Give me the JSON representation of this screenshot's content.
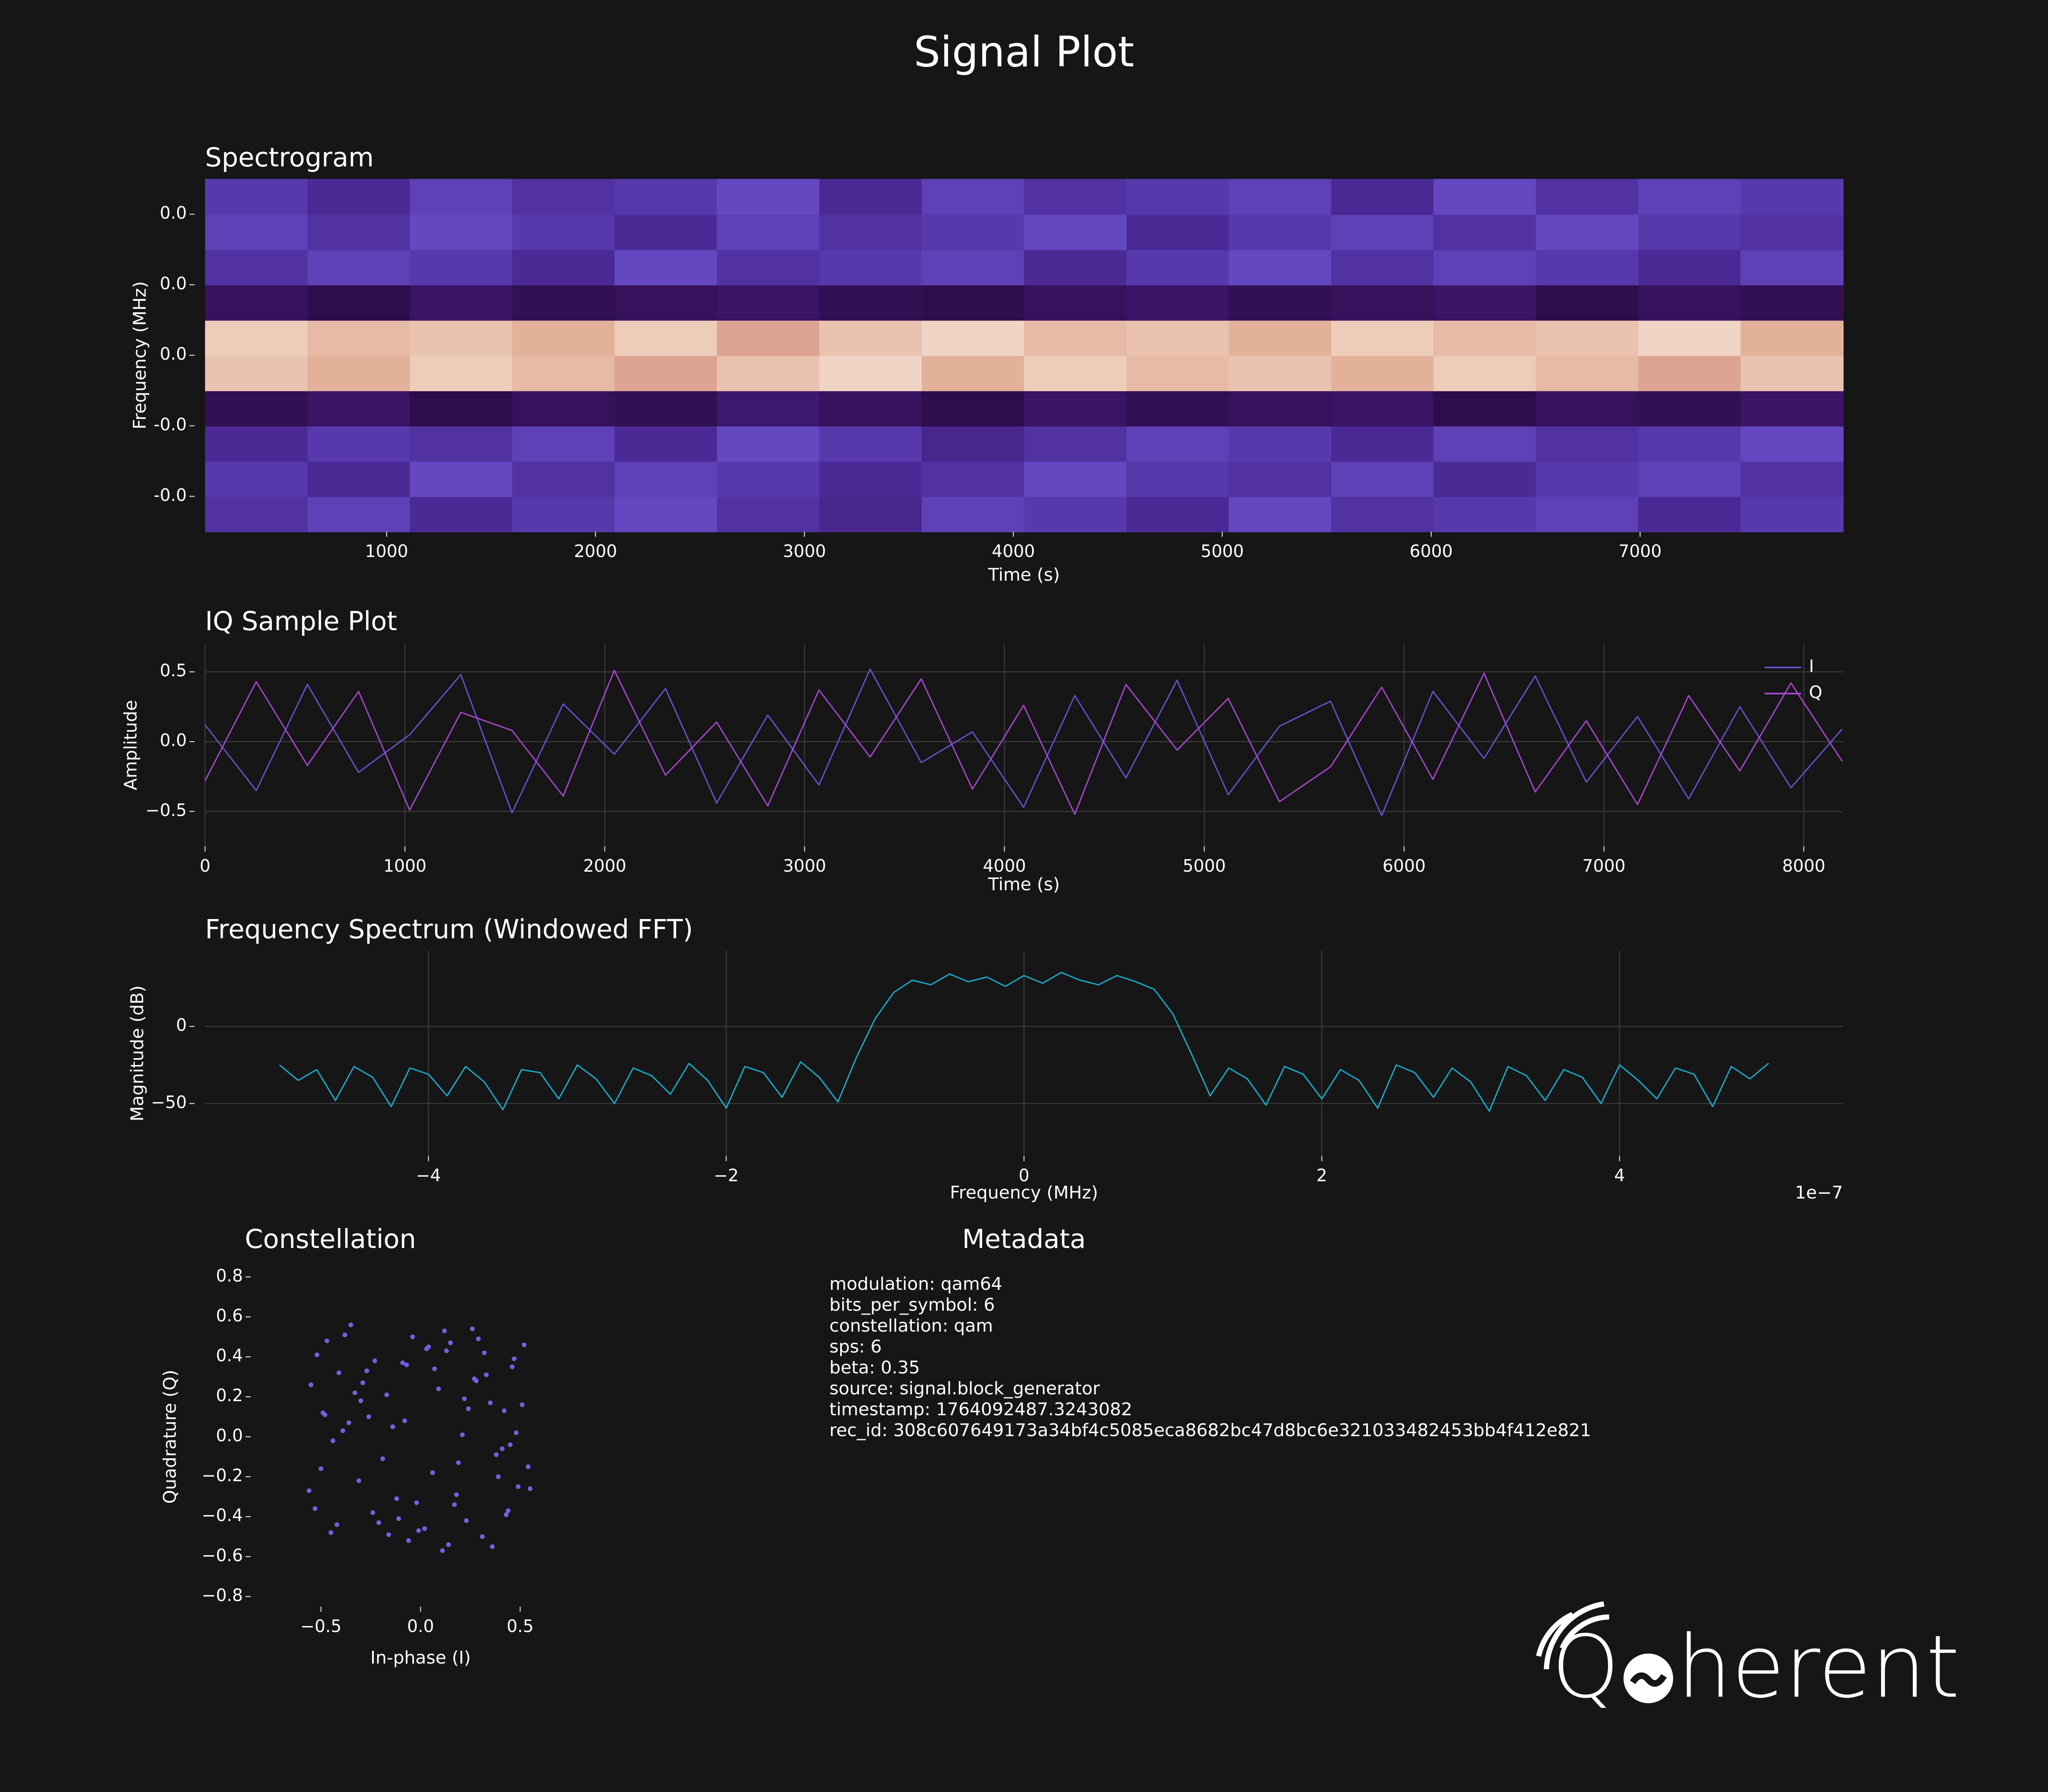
{
  "title": "Signal Plot",
  "chart_data": [
    {
      "type": "heatmap",
      "title": "Spectrogram",
      "xlabel": "Time (s)",
      "ylabel": "Frequency (MHz)",
      "xlim": [
        131,
        7971
      ],
      "ylim": [
        -0.05,
        0.05
      ],
      "xticks": [
        1000,
        2000,
        3000,
        4000,
        5000,
        6000,
        7000
      ],
      "yticks": [
        {
          "value": 0.04,
          "label": "0.0"
        },
        {
          "value": 0.02,
          "label": "0.0"
        },
        {
          "value": 0,
          "label": "0.0"
        },
        {
          "value": -0.02,
          "label": "-0.0"
        },
        {
          "value": -0.04,
          "label": "-0.0"
        }
      ],
      "grid": false,
      "xbins": [
        131,
        621,
        1111,
        1601,
        2091,
        2581,
        3071,
        3561,
        4051,
        4541,
        5031,
        5521,
        6011,
        6501,
        6991,
        7481,
        7971
      ],
      "ybins": [
        -0.05,
        -0.04,
        -0.03,
        -0.02,
        -0.01,
        0,
        0.01,
        0.02,
        0.03,
        0.04,
        0.05
      ],
      "colorscale": [
        [
          -55,
          "#25093a"
        ],
        [
          -50,
          "#3a1466"
        ],
        [
          -45,
          "#4b2a95"
        ],
        [
          -40,
          "#6a50cc"
        ],
        [
          -20,
          "#b3485a"
        ],
        [
          -12,
          "#e3b19a"
        ],
        [
          -6,
          "#f6e6da"
        ]
      ],
      "z": [
        [
          -44,
          -42,
          -45,
          -43,
          -41,
          -44,
          -46,
          -42,
          -43,
          -45,
          -41,
          -44,
          -43,
          -42,
          -45,
          -43
        ],
        [
          -43,
          -45,
          -41,
          -44,
          -42,
          -43,
          -45,
          -44,
          -41,
          -43,
          -44,
          -42,
          -45,
          -43,
          -42,
          -44
        ],
        [
          -45,
          -43,
          -44,
          -42,
          -45,
          -41,
          -43,
          -46,
          -44,
          -42,
          -43,
          -45,
          -42,
          -44,
          -43,
          -41
        ],
        [
          -52,
          -50,
          -53,
          -51,
          -52,
          -49,
          -51,
          -53,
          -50,
          -52,
          -51,
          -50,
          -53,
          -51,
          -52,
          -50
        ],
        [
          -10,
          -12,
          -9,
          -11,
          -13,
          -10,
          -8,
          -12,
          -9,
          -11,
          -10,
          -12,
          -9,
          -11,
          -13,
          -10
        ],
        [
          -9,
          -11,
          -10,
          -12,
          -9,
          -13,
          -10,
          -8,
          -11,
          -10,
          -12,
          -9,
          -11,
          -10,
          -8,
          -12
        ],
        [
          -51,
          -53,
          -50,
          -52,
          -51,
          -50,
          -52,
          -53,
          -51,
          -50,
          -52,
          -51,
          -50,
          -53,
          -51,
          -52
        ],
        [
          -44,
          -42,
          -43,
          -45,
          -41,
          -44,
          -43,
          -42,
          -45,
          -43,
          -41,
          -44,
          -42,
          -43,
          -45,
          -42
        ],
        [
          -42,
          -44,
          -41,
          -43,
          -45,
          -42,
          -44,
          -43,
          -41,
          -45,
          -43,
          -42,
          -44,
          -41,
          -43,
          -44
        ],
        [
          -43,
          -45,
          -42,
          -44,
          -43,
          -41,
          -45,
          -42,
          -44,
          -43,
          -42,
          -45,
          -41,
          -44,
          -42,
          -43
        ]
      ]
    },
    {
      "type": "line",
      "title": "IQ Sample Plot",
      "xlabel": "Time (s)",
      "ylabel": "Amplitude",
      "xlim": [
        0,
        8196
      ],
      "ylim": [
        -0.75,
        0.7
      ],
      "xticks": [
        0,
        1000,
        2000,
        3000,
        4000,
        5000,
        6000,
        7000,
        8000
      ],
      "yticks": [
        0.5,
        {
          "value": 0,
          "label": "0.0"
        },
        {
          "value": -0.5,
          "label": "−0.5"
        }
      ],
      "grid": true,
      "legend": "upper right",
      "x": [
        0,
        256,
        512,
        768,
        1024,
        1280,
        1536,
        1792,
        2048,
        2304,
        2560,
        2816,
        3072,
        3328,
        3584,
        3840,
        4096,
        4352,
        4608,
        4864,
        5120,
        5376,
        5632,
        5888,
        6144,
        6400,
        6656,
        6912,
        7168,
        7424,
        7680,
        7936,
        8192
      ],
      "series": [
        {
          "name": "I",
          "color": "#6a55d8",
          "values": [
            0.12,
            -0.35,
            0.41,
            -0.22,
            0.05,
            0.48,
            -0.51,
            0.27,
            -0.09,
            0.38,
            -0.44,
            0.19,
            -0.31,
            0.52,
            -0.15,
            0.07,
            -0.47,
            0.33,
            -0.26,
            0.44,
            -0.38,
            0.11,
            0.29,
            -0.53,
            0.36,
            -0.12,
            0.47,
            -0.29,
            0.18,
            -0.41,
            0.25,
            -0.33,
            0.09
          ]
        },
        {
          "name": "Q",
          "color": "#b048d8",
          "values": [
            -0.28,
            0.43,
            -0.17,
            0.36,
            -0.49,
            0.21,
            0.08,
            -0.39,
            0.51,
            -0.24,
            0.14,
            -0.46,
            0.37,
            -0.11,
            0.45,
            -0.34,
            0.26,
            -0.52,
            0.41,
            -0.06,
            0.31,
            -0.43,
            -0.18,
            0.39,
            -0.27,
            0.49,
            -0.36,
            0.15,
            -0.45,
            0.33,
            -0.21,
            0.42,
            -0.14
          ]
        }
      ]
    },
    {
      "type": "line",
      "title": "Frequency Spectrum (Windowed FFT)",
      "xlabel": "Frequency (MHz)",
      "ylabel": "Magnitude (dB)",
      "offset_label": "1e−7",
      "xlim": [
        -5.5,
        5.5
      ],
      "ylim": [
        -84,
        49
      ],
      "xticks": [
        {
          "value": -4,
          "label": "−4"
        },
        {
          "value": -2,
          "label": "−2"
        },
        0,
        2,
        4
      ],
      "yticks": [
        0,
        {
          "value": -50,
          "label": "−50"
        }
      ],
      "grid": true,
      "x": [
        -5,
        -4.875,
        -4.75,
        -4.625,
        -4.5,
        -4.375,
        -4.25,
        -4.125,
        -4,
        -3.875,
        -3.75,
        -3.625,
        -3.5,
        -3.375,
        -3.25,
        -3.125,
        -3,
        -2.875,
        -2.75,
        -2.625,
        -2.5,
        -2.375,
        -2.25,
        -2.125,
        -2,
        -1.875,
        -1.75,
        -1.625,
        -1.5,
        -1.375,
        -1.25,
        -1.125,
        -1,
        -0.875,
        -0.75,
        -0.625,
        -0.5,
        -0.375,
        -0.25,
        -0.125,
        0,
        0.125,
        0.25,
        0.375,
        0.5,
        0.625,
        0.75,
        0.875,
        1,
        1.125,
        1.25,
        1.375,
        1.5,
        1.625,
        1.75,
        1.875,
        2,
        2.125,
        2.25,
        2.375,
        2.5,
        2.625,
        2.75,
        2.875,
        3,
        3.125,
        3.25,
        3.375,
        3.5,
        3.625,
        3.75,
        3.875,
        4,
        4.125,
        4.25,
        4.375,
        4.5,
        4.625,
        4.75,
        4.875,
        5
      ],
      "series": [
        {
          "color": "#17b3d4",
          "values": [
            -25,
            -35,
            -28,
            -48,
            -26,
            -33,
            -52,
            -27,
            -31,
            -45,
            -26,
            -36,
            -54,
            -28,
            -30,
            -47,
            -25,
            -34,
            -50,
            -27,
            -32,
            -44,
            -24,
            -35,
            -53,
            -26,
            -30,
            -46,
            -23,
            -33,
            -49,
            -20,
            5,
            22,
            30,
            27,
            34,
            29,
            32,
            26,
            33,
            28,
            35,
            30,
            27,
            33,
            29,
            24,
            8,
            -18,
            -45,
            -27,
            -34,
            -51,
            -26,
            -31,
            -47,
            -28,
            -35,
            -53,
            -25,
            -30,
            -46,
            -27,
            -36,
            -55,
            -26,
            -32,
            -48,
            -28,
            -33,
            -50,
            -25,
            -35,
            -47,
            -27,
            -31,
            -52,
            -26,
            -34,
            -24
          ]
        }
      ]
    },
    {
      "type": "scatter",
      "title": "Constellation",
      "xlabel": "In-phase (I)",
      "ylabel": "Quadrature (Q)",
      "xlim": [
        -0.8,
        0.8
      ],
      "ylim": [
        -0.85,
        0.85
      ],
      "xticks": [
        {
          "value": -0.5,
          "label": "−0.5"
        },
        {
          "value": 0,
          "label": "0.0"
        },
        0.5
      ],
      "yticks": [
        0.8,
        0.6,
        0.4,
        0.2,
        {
          "value": 0,
          "label": "0.0"
        },
        {
          "value": -0.2,
          "label": "−0.2"
        },
        {
          "value": -0.4,
          "label": "−0.4"
        },
        {
          "value": -0.6,
          "label": "−0.6"
        },
        {
          "value": -0.8,
          "label": "−0.8"
        }
      ],
      "grid": false,
      "color": "#7b5ce0",
      "x": [
        -0.52,
        -0.31,
        0.12,
        0.44,
        -0.08,
        0.27,
        -0.45,
        0.51,
        -0.19,
        0.03,
        0.36,
        -0.27,
        0.48,
        -0.56,
        0.15,
        -0.11,
        0.22,
        -0.38,
        0.41,
        -0.02,
        0.09,
        -0.49,
        0.31,
        -0.23,
        0.54,
        -0.35,
        0.18,
        -0.14,
        0.46,
        -0.42,
        0.06,
        0.29,
        -0.29,
        0.38,
        -0.06,
        0.24,
        -0.53,
        0.13,
        -0.17,
        0.49,
        -0.39,
        0.02,
        0.33,
        -0.47,
        0.19,
        -0.09,
        0.43,
        -0.26,
        0.11,
        -0.33,
        0.52,
        -0.12,
        0.26,
        -0.44,
        0.35,
        -0.21,
        0.07,
        -0.55,
        0.39,
        -0.04,
        0.17,
        -0.36,
        0.47,
        -0.16,
        0.28,
        -0.5,
        0.04,
        0.42,
        -0.24,
        0.21,
        -0.41,
        0.55,
        -0.01,
        0.32,
        -0.48,
        0.14,
        -0.3,
        0.45,
        -0.07,
        0.23
      ],
      "values": [
        0.41,
        -0.22,
        0.53,
        -0.37,
        0.08,
        0.29,
        -0.48,
        0.16,
        -0.11,
        0.44,
        -0.55,
        0.33,
        0.02,
        -0.27,
        0.47,
        -0.41,
        0.19,
        0.51,
        -0.06,
        -0.33,
        0.24,
        0.12,
        -0.5,
        0.38,
        -0.15,
        0.56,
        -0.29,
        0.05,
        0.35,
        -0.44,
        -0.18,
        0.49,
        0.27,
        -0.09,
        -0.52,
        0.14,
        -0.36,
        0.43,
        0.21,
        -0.25,
        0.03,
        -0.46,
        0.31,
        0.48,
        -0.13,
        0.37,
        -0.39,
        0.1,
        -0.57,
        0.22,
        0.46,
        -0.31,
        0.54,
        -0.02,
        0.17,
        -0.43,
        0.34,
        0.26,
        -0.2,
        0.5,
        -0.34,
        0.07,
        0.39,
        -0.49,
        0.28,
        -0.16,
        0.45,
        0.13,
        -0.38,
        0.01,
        0.32,
        -0.26,
        -0.47,
        0.42,
        0.11,
        -0.54,
        0.18,
        -0.04,
        0.36,
        -0.42
      ]
    }
  ],
  "metadata": {
    "title": "Metadata",
    "lines": [
      "modulation: qam64",
      "bits_per_symbol: 6",
      "constellation: qam",
      "sps: 6",
      "beta: 0.35",
      "source: signal.block_generator",
      "timestamp: 1764092487.3243082",
      "rec_id: 308c607649173a34bf4c5085eca8682bc47d8bc6e321033482453bb4f412e821"
    ]
  },
  "logo": {
    "prefix": "Q",
    "suffix": "herent"
  }
}
